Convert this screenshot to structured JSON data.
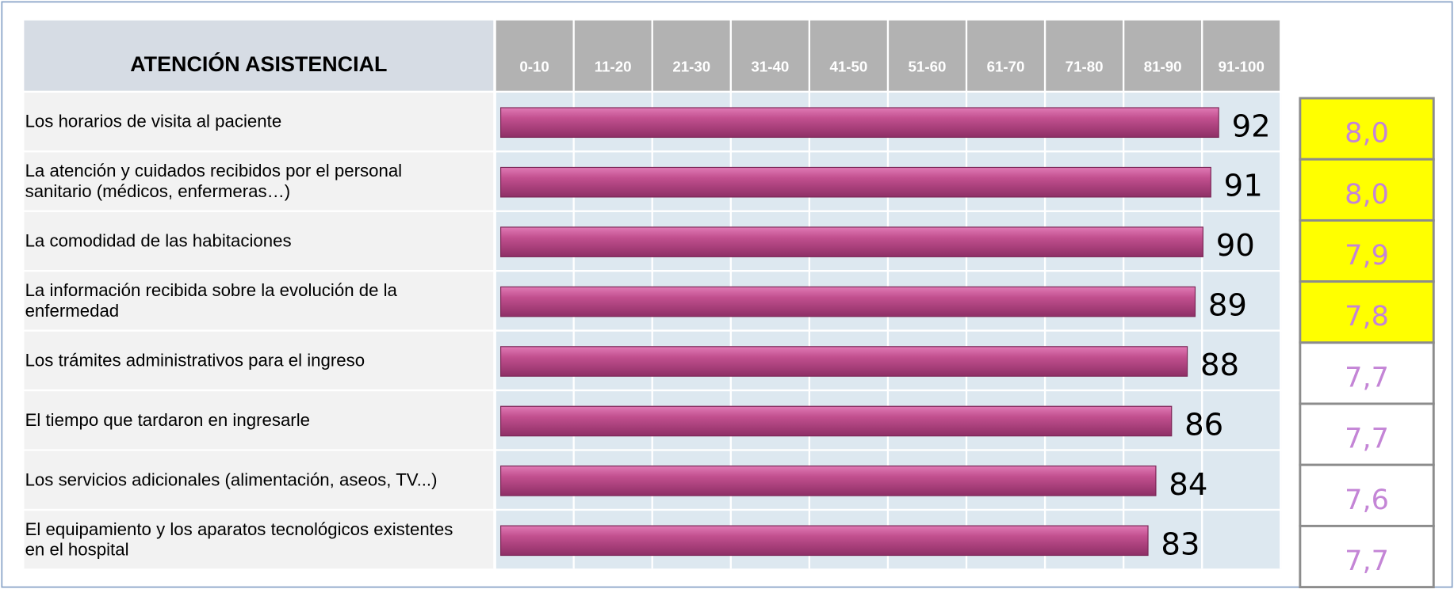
{
  "chart_data": {
    "type": "bar",
    "orientation": "horizontal",
    "title": "ATENCIÓN ASISTENCIAL",
    "categories": [
      [
        "Los horarios de visita al paciente"
      ],
      [
        "La atención y cuidados recibidos por el personal",
        "sanitario (médicos, enfermeras…)"
      ],
      [
        "La comodidad de las habitaciones"
      ],
      [
        "La información recibida sobre la evolución de la",
        "enfermedad"
      ],
      [
        "Los trámites administrativos para el ingreso"
      ],
      [
        "El tiempo que tardaron en ingresarle"
      ],
      [
        "Los servicios adicionales (alimentación, aseos, TV...)"
      ],
      [
        "El equipamiento y los aparatos tecnológicos existentes",
        "en el hospital"
      ]
    ],
    "values": [
      92,
      91,
      90,
      89,
      88,
      86,
      84,
      83
    ],
    "color": "#c2508f",
    "xlim": [
      0,
      100
    ],
    "xbins": [
      0,
      10,
      20,
      30,
      40,
      50,
      60,
      70,
      80,
      90,
      100
    ],
    "xbin_labels": [
      "0-10",
      "11-20",
      "21-30",
      "31-40",
      "41-50",
      "51-60",
      "61-70",
      "71-80",
      "81-90",
      "91-100"
    ],
    "grid": true,
    "scores": [
      "8,0",
      "8,0",
      "7,9",
      "7,8",
      "7,7",
      "7,7",
      "7,6",
      "7,7"
    ],
    "score_colors": [
      "#ffff00",
      "#ffff00",
      "#ffff00",
      "#ffff00",
      "#ffffff",
      "#ffffff",
      "#ffffff",
      "#ffffff"
    ]
  }
}
